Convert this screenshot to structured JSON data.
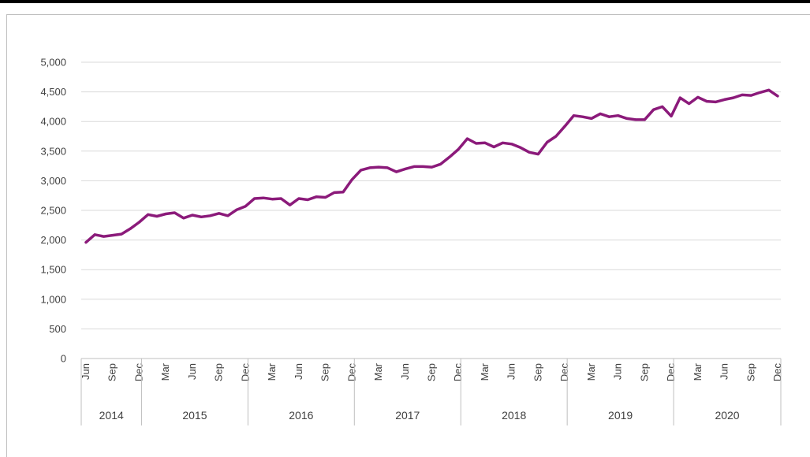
{
  "chart_data": {
    "type": "line",
    "title": "",
    "xlabel": "",
    "ylabel": "",
    "ylim": [
      0,
      5000
    ],
    "yticks": [
      0,
      500,
      1000,
      1500,
      2000,
      2500,
      3000,
      3500,
      4000,
      4500,
      5000
    ],
    "ytick_labels": [
      "0",
      "500",
      "1,000",
      "1,500",
      "2,000",
      "2,500",
      "3,000",
      "3,500",
      "4,000",
      "4,500",
      "5,000"
    ],
    "grid": true,
    "legend": "none",
    "line_color": "#8B1A7A",
    "month_labels": [
      "Jun",
      "Sep",
      "Dec",
      "Mar",
      "Jun",
      "Sep",
      "Dec",
      "Mar",
      "Jun",
      "Sep",
      "Dec",
      "Mar",
      "Jun",
      "Sep",
      "Dec",
      "Mar",
      "Jun",
      "Sep",
      "Dec",
      "Mar",
      "Jun",
      "Sep",
      "Dec",
      "Mar",
      "Jun",
      "Sep",
      "Dec"
    ],
    "years": [
      "2014",
      "2015",
      "2016",
      "2017",
      "2018",
      "2019",
      "2020"
    ],
    "x": [
      "2014-06",
      "2014-07",
      "2014-08",
      "2014-09",
      "2014-10",
      "2014-11",
      "2014-12",
      "2015-01",
      "2015-02",
      "2015-03",
      "2015-04",
      "2015-05",
      "2015-06",
      "2015-07",
      "2015-08",
      "2015-09",
      "2015-10",
      "2015-11",
      "2015-12",
      "2016-01",
      "2016-02",
      "2016-03",
      "2016-04",
      "2016-05",
      "2016-06",
      "2016-07",
      "2016-08",
      "2016-09",
      "2016-10",
      "2016-11",
      "2016-12",
      "2017-01",
      "2017-02",
      "2017-03",
      "2017-04",
      "2017-05",
      "2017-06",
      "2017-07",
      "2017-08",
      "2017-09",
      "2017-10",
      "2017-11",
      "2017-12",
      "2018-01",
      "2018-02",
      "2018-03",
      "2018-04",
      "2018-05",
      "2018-06",
      "2018-07",
      "2018-08",
      "2018-09",
      "2018-10",
      "2018-11",
      "2018-12",
      "2019-01",
      "2019-02",
      "2019-03",
      "2019-04",
      "2019-05",
      "2019-06",
      "2019-07",
      "2019-08",
      "2019-09",
      "2019-10",
      "2019-11",
      "2019-12",
      "2020-01",
      "2020-02",
      "2020-03",
      "2020-04",
      "2020-05",
      "2020-06",
      "2020-07",
      "2020-08",
      "2020-09",
      "2020-10",
      "2020-11",
      "2020-12"
    ],
    "series": [
      {
        "values": [
          1960,
          2090,
          2060,
          2080,
          2100,
          2190,
          2300,
          2430,
          2400,
          2440,
          2460,
          2370,
          2420,
          2390,
          2410,
          2450,
          2410,
          2510,
          2570,
          2700,
          2710,
          2690,
          2700,
          2590,
          2700,
          2680,
          2730,
          2720,
          2800,
          2810,
          3020,
          3180,
          3220,
          3230,
          3220,
          3150,
          3200,
          3240,
          3240,
          3230,
          3280,
          3400,
          3530,
          3710,
          3630,
          3640,
          3570,
          3640,
          3620,
          3560,
          3480,
          3450,
          3650,
          3750,
          3920,
          4100,
          4080,
          4050,
          4130,
          4080,
          4100,
          4050,
          4030,
          4030,
          4200,
          4250,
          4090,
          4400,
          4300,
          4410,
          4340,
          4330,
          4370,
          4400,
          4450,
          4440,
          4490,
          4530,
          4430
        ]
      }
    ]
  }
}
